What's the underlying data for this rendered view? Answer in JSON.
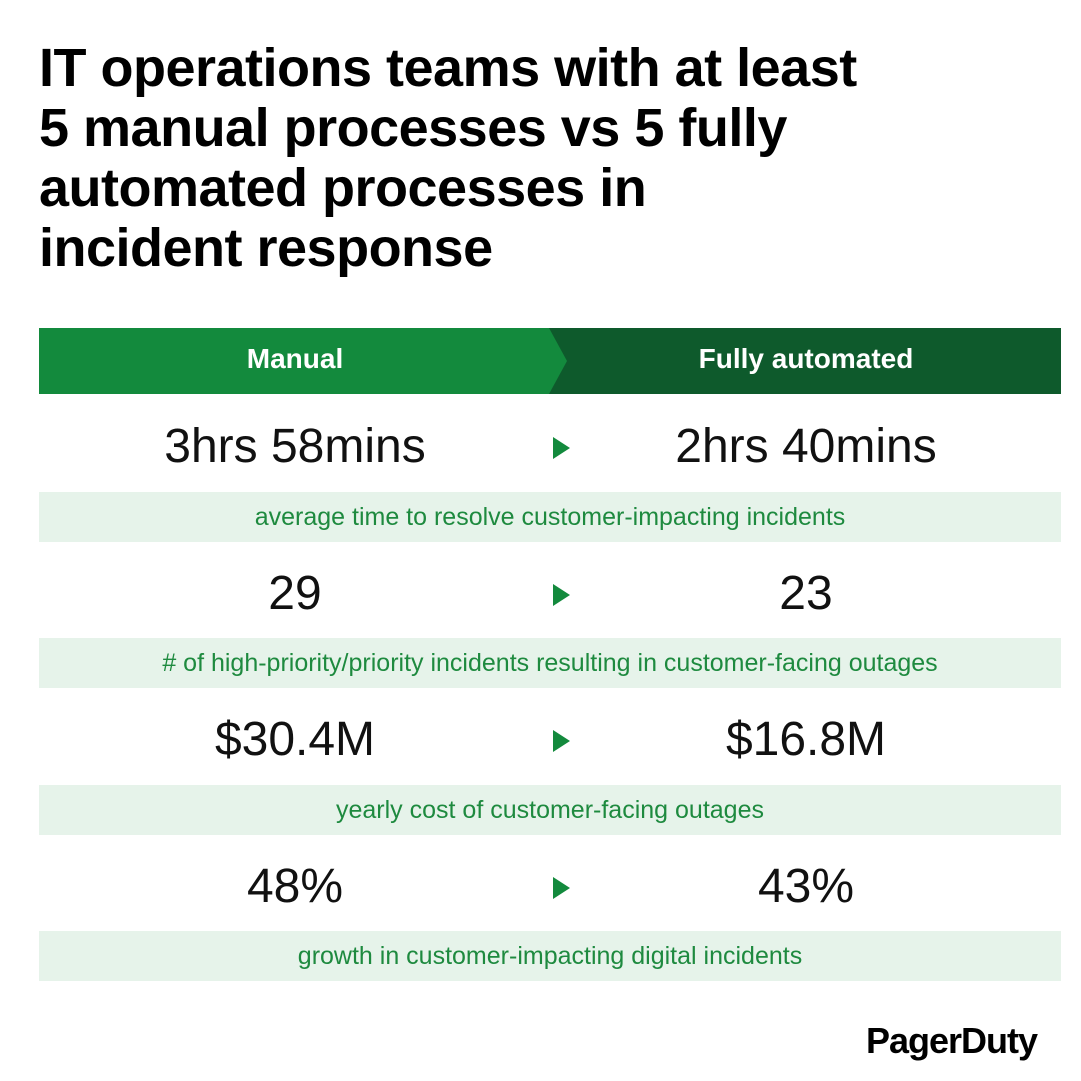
{
  "title": {
    "lines": [
      "IT operations teams with at least",
      "5 manual processes vs 5 fully",
      "automated processes in",
      "incident response"
    ]
  },
  "header": {
    "manual_label": "Manual",
    "automated_label": "Fully automated",
    "manual_color": "#138a3d",
    "automated_color": "#0e5a2c"
  },
  "metrics": [
    {
      "manual": "3hrs 58mins",
      "automated": "2hrs 40mins",
      "caption": "average time to resolve customer-impacting incidents"
    },
    {
      "manual": "29",
      "automated": "23",
      "caption": "# of high-priority/priority incidents resulting in customer-facing outages"
    },
    {
      "manual": "$30.4M",
      "automated": "$16.8M",
      "caption": "yearly cost of customer-facing outages"
    },
    {
      "manual": "48%",
      "automated": "43%",
      "caption": "growth in customer-impacting digital incidents"
    }
  ],
  "colors": {
    "accent": "#138a3d",
    "caption_bg": "#e6f3ea",
    "caption_text": "#1e8a3f"
  },
  "arrow_icon": "right-triangle-icon",
  "logo_text": "PagerDuty"
}
